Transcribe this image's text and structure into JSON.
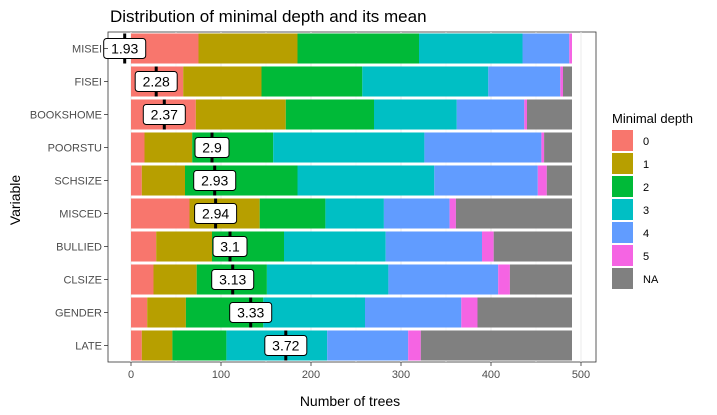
{
  "chart_data": {
    "type": "bar",
    "orientation": "horizontal",
    "stacked": true,
    "title": "Distribution of minimal depth and its mean",
    "xlabel": "Number of trees",
    "ylabel": "Variable",
    "xlim": [
      -15,
      500
    ],
    "xticks": [
      0,
      100,
      200,
      300,
      400,
      500
    ],
    "grid": true,
    "legend_position": "right",
    "legend_title": "Minimal depth",
    "categories": [
      "MISEI",
      "FISEI",
      "BOOKSHOME",
      "POORSTU",
      "SCHSIZE",
      "MISCED",
      "BULLIED",
      "CLSIZE",
      "GENDER",
      "LATE"
    ],
    "series": [
      {
        "name": "0",
        "color": "#F8766D",
        "values": [
          75,
          58,
          72,
          15,
          12,
          65,
          28,
          25,
          18,
          12
        ]
      },
      {
        "name": "1",
        "color": "#B79F00",
        "values": [
          110,
          87,
          100,
          53,
          48,
          78,
          62,
          48,
          43,
          34
        ]
      },
      {
        "name": "2",
        "color": "#00BA38",
        "values": [
          135,
          112,
          98,
          90,
          125,
          73,
          80,
          78,
          86,
          60
        ]
      },
      {
        "name": "3",
        "color": "#00BFC4",
        "values": [
          115,
          140,
          92,
          168,
          152,
          65,
          113,
          135,
          113,
          112
        ]
      },
      {
        "name": "4",
        "color": "#619CFF",
        "values": [
          52,
          80,
          75,
          130,
          115,
          73,
          107,
          122,
          107,
          90
        ]
      },
      {
        "name": "5",
        "color": "#F564E3",
        "values": [
          3,
          3,
          3,
          3,
          10,
          7,
          13,
          13,
          18,
          14
        ]
      },
      {
        "name": "NA",
        "color": "#808080",
        "values": [
          0,
          10,
          50,
          31,
          28,
          129,
          87,
          69,
          105,
          168
        ]
      }
    ],
    "means": [
      1.93,
      2.28,
      2.37,
      2.9,
      2.93,
      2.94,
      3.1,
      3.13,
      3.33,
      3.72
    ],
    "mean_labels": [
      "1.93",
      "2.28",
      "2.37",
      "2.9",
      "2.93",
      "2.94",
      "3.1",
      "3.13",
      "3.33",
      "3.72"
    ]
  }
}
